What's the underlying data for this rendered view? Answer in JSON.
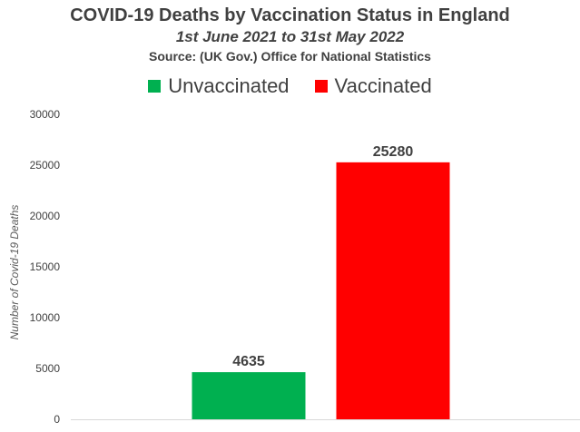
{
  "chart_data": {
    "type": "bar",
    "title": "COVID-19 Deaths by Vaccination Status in England",
    "subtitle": "1st June 2021 to 31st May 2022",
    "source": "Source: (UK Gov.) Office for National Statistics",
    "ylabel": "Number of Covid-19 Deaths",
    "xlabel": "",
    "ylim": [
      0,
      30000
    ],
    "yticks": [
      0,
      5000,
      10000,
      15000,
      20000,
      25000,
      30000
    ],
    "grid": false,
    "legend_position": "top",
    "series": [
      {
        "name": "Unvaccinated",
        "value": 4635,
        "color": "#00B050"
      },
      {
        "name": "Vaccinated",
        "value": 25280,
        "color": "#FF0000"
      }
    ]
  }
}
